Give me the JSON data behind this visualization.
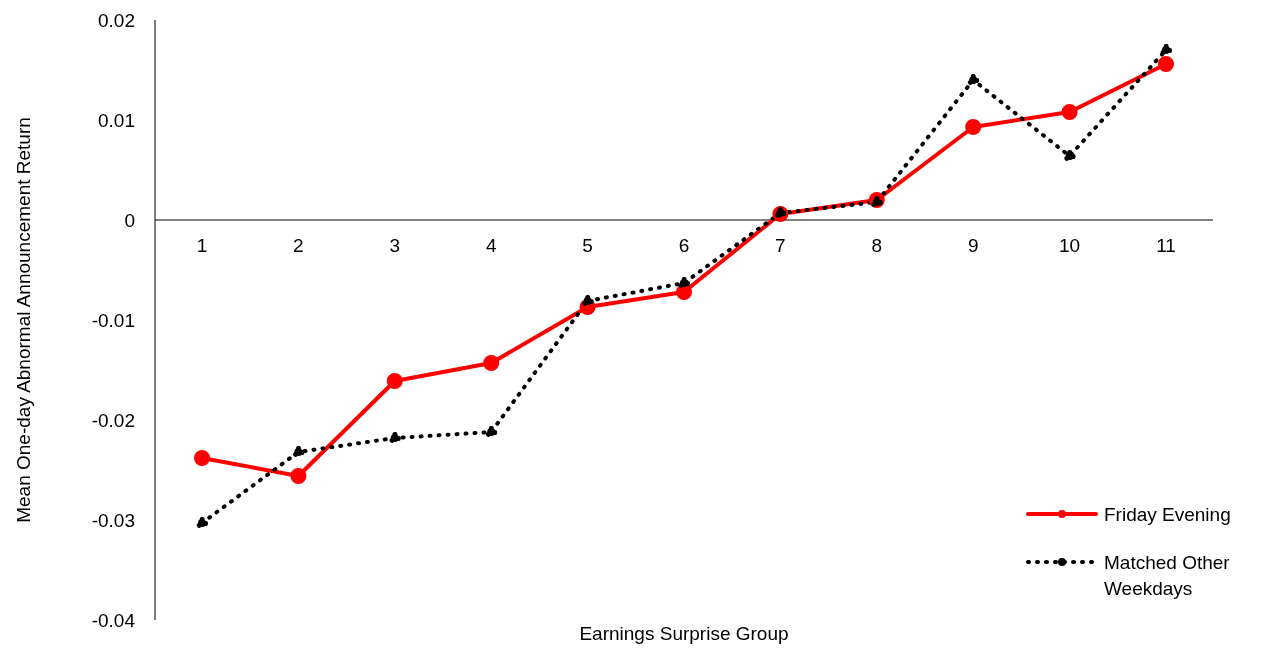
{
  "chart_data": {
    "type": "line",
    "xlabel": "Earnings Surprise Group",
    "ylabel": "Mean One-day Abnormal Announcement Return",
    "categories": [
      "1",
      "2",
      "3",
      "4",
      "5",
      "6",
      "7",
      "8",
      "9",
      "10",
      "11"
    ],
    "series": [
      {
        "name": "Friday Evening",
        "color": "#ff0000",
        "line_style": "solid",
        "values": [
          -0.0238,
          -0.0256,
          -0.0161,
          -0.0143,
          -0.0087,
          -0.0072,
          0.0006,
          0.002,
          0.0093,
          0.0108,
          0.0156
        ]
      },
      {
        "name": "Matched Other Weekdays",
        "color": "#000000",
        "line_style": "dotted",
        "values": [
          -0.0303,
          -0.0232,
          -0.0218,
          -0.0212,
          -0.0081,
          -0.0063,
          0.0007,
          0.0018,
          0.014,
          0.0064,
          0.017
        ]
      }
    ],
    "ylim": [
      -0.04,
      0.02
    ],
    "yticks": [
      -0.04,
      -0.03,
      -0.02,
      -0.01,
      0,
      0.01,
      0.02
    ],
    "grid": false,
    "legend": "bottom right",
    "marker": "circle"
  }
}
